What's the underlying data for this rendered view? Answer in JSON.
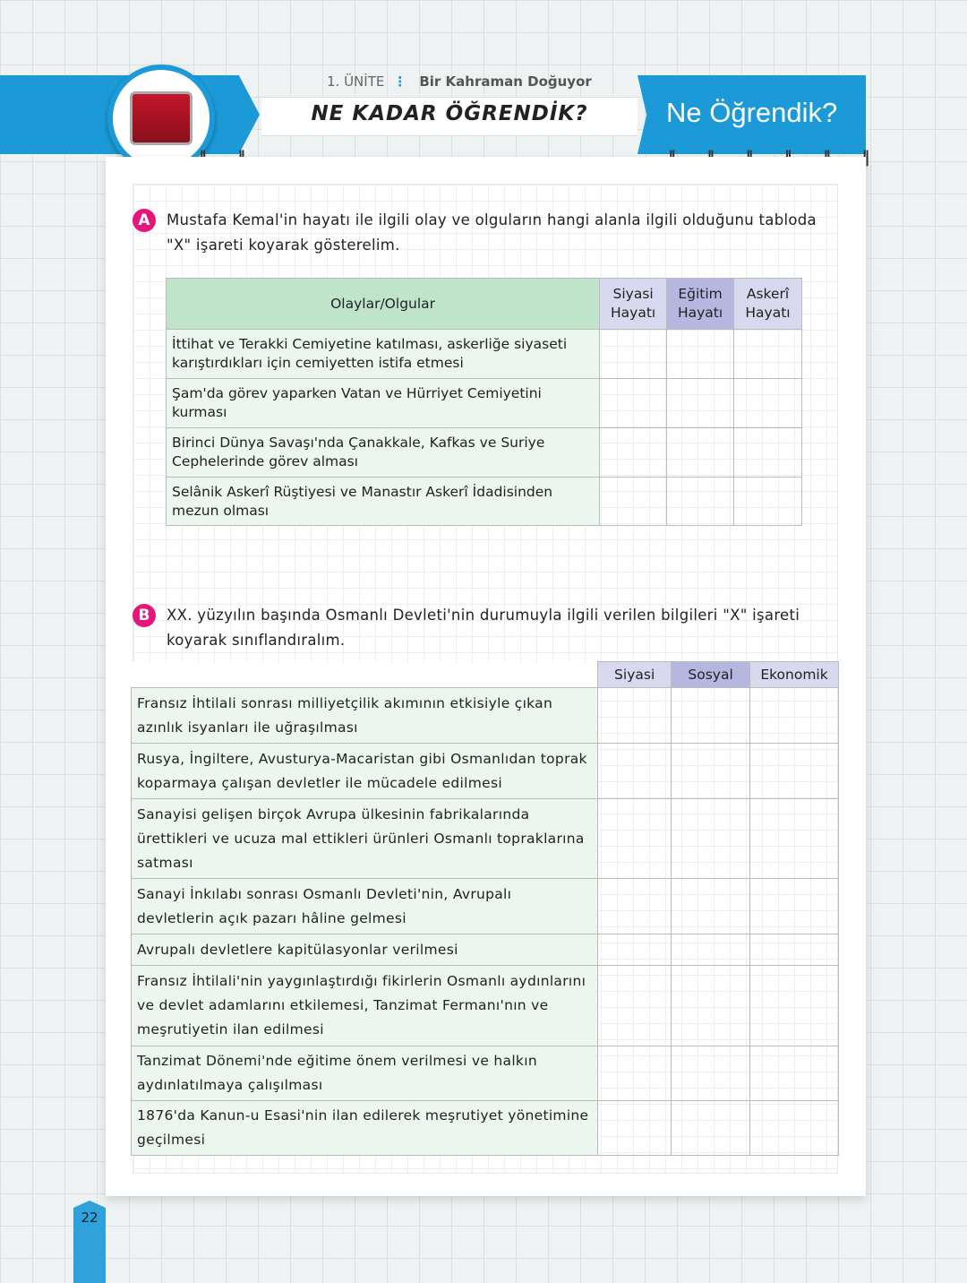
{
  "header": {
    "unit": "1. ÜNİTE",
    "unit_title": "Bir Kahraman Doğuyor",
    "title": "NE KADAR ÖĞRENDİK?",
    "section_title": "Ne Öğrendik?",
    "rings": "‖ ‖ ‖ ‖ ‖ ‖",
    "rings_left": "‖ ‖",
    "brand_color": "#1b9ad7"
  },
  "section_a": {
    "badge": "A",
    "instruction": "Mustafa Kemal'in hayatı ile ilgili olay ve olguların hangi alanla ilgili olduğunu tabloda \"X\" işareti koyarak gösterelim.",
    "columns": [
      "Olaylar/Olgular",
      "Siyasi Hayatı",
      "Eğitim Hayatı",
      "Askerî Hayatı"
    ],
    "rows": [
      "İttihat ve Terakki Cemiyetine katılması, askerliğe siyaseti karıştırdıkları için cemiyetten istifa etmesi",
      "Şam'da görev yaparken Vatan ve Hürriyet Cemiyetini kurması",
      "Birinci Dünya Savaşı'nda Çanakkale, Kafkas ve Suriye Cephelerinde görev alması",
      "Selânik Askerî Rüştiyesi ve Manastır Askerî İdadisinden mezun olması"
    ]
  },
  "section_b": {
    "badge": "B",
    "instruction": "XX. yüzyılın başında Osmanlı Devleti'nin durumuyla ilgili verilen bilgileri \"X\" işareti koyarak sınıflandıralım.",
    "columns": [
      "Siyasi",
      "Sosyal",
      "Ekonomik"
    ],
    "rows": [
      "Fransız İhtilali sonrası milliyetçilik akımının etkisiyle çıkan azınlık isyanları ile uğraşılması",
      "Rusya, İngiltere, Avusturya-Macaristan gibi Osmanlıdan toprak koparmaya çalışan devletler ile mücadele edilmesi",
      "Sanayisi gelişen birçok Avrupa ülkesinin fabrikalarında ürettikleri ve ucuza mal ettikleri ürünleri Osmanlı topraklarına satması",
      "Sanayi İnkılabı sonrası Osmanlı Devleti'nin, Avrupalı devletlerin açık pazarı hâline gelmesi",
      "Avrupalı devletlere kapitülasyonlar verilmesi",
      "Fransız İhtilali'nin yaygınlaştırdığı fikirlerin Osmanlı aydınlarını ve devlet adamlarını etkilemesi, Tanzimat Fermanı'nın ve meşrutiyetin ilan edilmesi",
      "Tanzimat Dönemi'nde eğitime önem verilmesi ve halkın aydınlatılmaya çalışılması",
      "1876'da Kanun-u Esasi'nin ilan edilerek meşrutiyet yönetimine geçilmesi"
    ]
  },
  "page_number": "22"
}
